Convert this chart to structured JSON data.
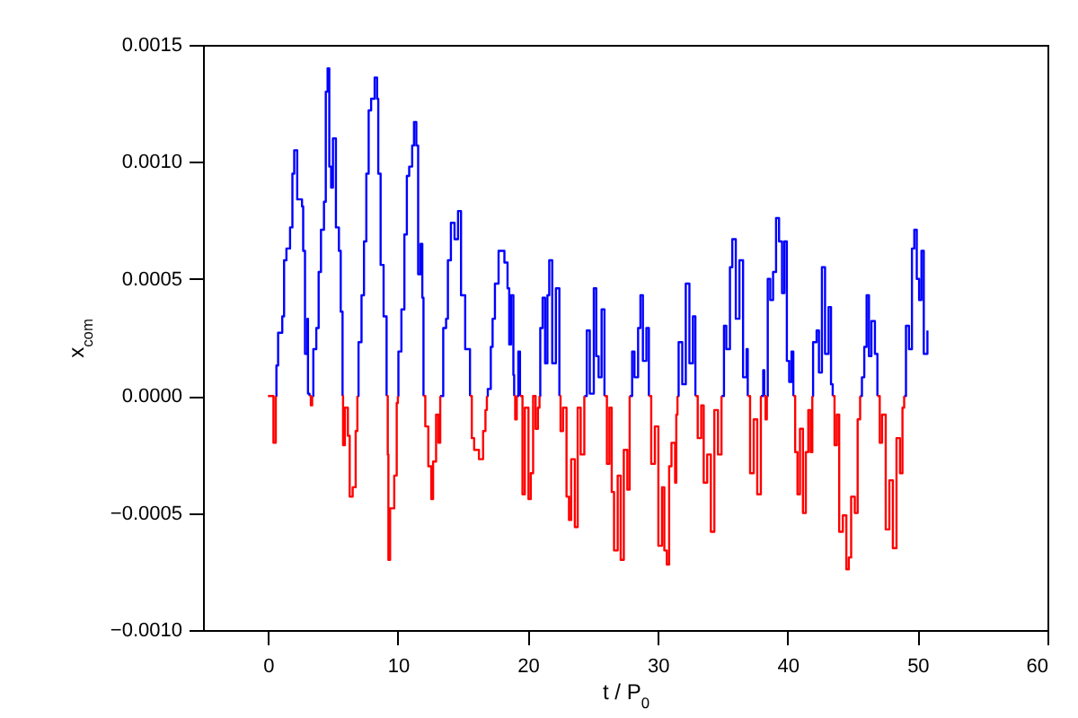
{
  "chart_data": {
    "type": "step",
    "xlabel": "t / P$_{0}$",
    "ylabel": "x$_{com}$",
    "xlim": [
      -5,
      60
    ],
    "xticks": [
      0,
      10,
      20,
      30,
      40,
      50,
      60
    ],
    "ylim": [
      -0.001,
      0.0015
    ],
    "yticks": [
      {
        "value": -0.001,
        "label": "−0.0010"
      },
      {
        "value": -0.0005,
        "label": "−0.0005"
      },
      {
        "value": 0,
        "label": "0.0000"
      },
      {
        "value": 0.0005,
        "label": "0.0005"
      },
      {
        "value": 0.001,
        "label": "0.0010"
      },
      {
        "value": 0.0015,
        "label": "0.0015"
      }
    ],
    "grid": false,
    "series": [
      {
        "color": "#0000ff",
        "x": [
          0.6,
          0.65,
          0.78,
          1.1,
          1.24,
          1.42,
          1.7,
          1.88,
          2.02,
          2.25,
          2.62,
          2.71,
          2.85,
          3.03,
          3.08,
          3.2,
          3.3,
          3.4,
          3.49,
          3.72,
          3.9,
          4.08,
          4.31,
          4.45,
          4.59,
          4.72,
          4.86,
          5.0,
          5.23,
          5.46,
          5.6,
          5.74,
          5.78,
          6.88,
          6.97,
          7.2,
          7.39,
          7.57,
          7.75,
          7.94,
          8.21,
          8.4,
          8.49,
          8.67,
          8.9,
          9.13,
          9.22,
          10.0,
          10.04,
          10.27,
          10.5,
          10.69,
          10.87,
          11.1,
          11.24,
          11.42,
          11.56,
          11.74,
          11.88,
          11.97,
          12.11,
          13.26,
          13.49,
          13.71,
          13.85,
          14.08,
          14.36,
          14.63,
          14.86,
          15.18,
          15.55,
          15.69,
          16.85,
          16.92,
          17.15,
          17.29,
          17.47,
          17.75,
          18.2,
          18.44,
          18.57,
          18.71,
          18.89,
          18.95,
          19.03,
          19.15,
          19.27,
          19.4,
          19.59,
          20.9,
          20.96,
          21.14,
          21.33,
          21.51,
          21.65,
          21.88,
          22.16,
          22.43,
          22.52,
          24.35,
          24.54,
          24.77,
          25.08,
          25.27,
          25.45,
          25.68,
          25.9,
          26.09,
          27.84,
          28.03,
          28.21,
          28.49,
          28.67,
          28.86,
          29.13,
          29.32,
          29.5,
          31.52,
          31.61,
          31.89,
          32.16,
          32.44,
          32.71,
          32.9,
          33.08,
          34.91,
          35.1,
          35.28,
          35.56,
          35.74,
          36.01,
          36.29,
          36.57,
          36.84,
          36.93,
          37.11,
          37.94,
          38.12,
          38.2,
          38.3,
          38.4,
          38.47,
          38.66,
          38.88,
          39.11,
          39.34,
          39.57,
          39.75,
          39.94,
          40.12,
          40.3,
          40.44,
          40.58,
          41.9,
          41.96,
          42.23,
          42.41,
          42.64,
          42.88,
          43.15,
          43.34,
          43.47,
          43.61,
          45.58,
          45.72,
          45.9,
          46.08,
          46.26,
          46.45,
          46.72,
          46.91,
          47.09,
          48.97,
          49.11,
          49.34,
          49.57,
          49.75,
          49.94,
          50.12,
          50.3,
          50.48,
          50.76
        ],
        "values": [
          0,
          0.00013,
          0.00027,
          0.00034,
          0.00058,
          0.00063,
          0.00072,
          0.00095,
          0.00105,
          0.00084,
          0.00081,
          0.00062,
          0.00018,
          0.00033,
          1e-05,
          0,
          null,
          0,
          0.0002,
          0.00029,
          0.00053,
          0.00071,
          0.00083,
          0.0013,
          0.0014,
          0.00098,
          0.00089,
          0.0011,
          0.00072,
          0.00062,
          0.00036,
          0,
          null,
          0,
          0.00023,
          0.00043,
          0.00066,
          0.00095,
          0.00122,
          0.00127,
          0.00136,
          0.00127,
          0.00095,
          0.00056,
          0.00034,
          0,
          null,
          0,
          0.00019,
          0.00037,
          0.00069,
          0.00094,
          0.00098,
          0.00107,
          0.00117,
          0.00107,
          0.00052,
          0.00065,
          0.00042,
          0,
          null,
          0,
          0.00029,
          0.00033,
          0.00058,
          0.00074,
          0.00067,
          0.00079,
          0.00043,
          0.0002,
          0,
          null,
          0,
          3e-05,
          0.00021,
          0.00033,
          0.00048,
          0.00062,
          0.00057,
          0.00046,
          0.00022,
          0.00043,
          9e-05,
          0,
          null,
          0,
          0.00019,
          0,
          null,
          0,
          0.00029,
          0.00042,
          0.00014,
          0.00043,
          0.00058,
          0.00014,
          0.00046,
          0,
          null,
          0,
          0.00028,
          1e-05,
          0.00046,
          0.00017,
          8e-05,
          0.00037,
          0,
          null,
          0,
          0.00019,
          8e-05,
          0.00029,
          0.00043,
          0.00015,
          0.00029,
          0,
          null,
          0,
          0.00023,
          5e-05,
          0.00048,
          0.00014,
          0.00034,
          0,
          null,
          0,
          0.0003,
          0.0002,
          0.00055,
          0.00067,
          0.00033,
          0.00058,
          8e-05,
          0.0002,
          0,
          null,
          0,
          0.00011,
          0,
          null,
          0,
          0.0005,
          0.00041,
          0.00053,
          0.00076,
          0.00066,
          0.00044,
          0.00066,
          0.00015,
          6e-05,
          0.00019,
          0,
          null,
          0,
          0.00023,
          0.00028,
          0.0001,
          0.00055,
          0.00018,
          0.00038,
          5e-05,
          0,
          null,
          0,
          8e-05,
          0.00021,
          0.00043,
          0.00017,
          0.00032,
          0.00018,
          0,
          null,
          0,
          0.0003,
          0.0002,
          0.00063,
          0.00071,
          0.0005,
          0.00041,
          0.00062,
          0.00018,
          0.00028
        ]
      },
      {
        "color": "#ff0000",
        "x": [
          0,
          0.42,
          0.6,
          0.65,
          3.2,
          3.3,
          3.4,
          3.49,
          5.74,
          5.78,
          5.92,
          6.15,
          6.29,
          6.52,
          6.75,
          6.88,
          6.97,
          9.13,
          9.22,
          9.27,
          9.4,
          9.72,
          9.91,
          10.0,
          10.04,
          11.97,
          12.11,
          12.34,
          12.57,
          12.71,
          12.94,
          13.12,
          13.26,
          13.49,
          15.55,
          15.69,
          15.87,
          16.24,
          16.56,
          16.74,
          16.85,
          16.92,
          18.95,
          19.03,
          19.15,
          19.27,
          19.4,
          19.59,
          19.77,
          20.05,
          20.23,
          20.41,
          20.6,
          20.78,
          20.9,
          20.96,
          22.43,
          22.52,
          22.71,
          22.98,
          23.17,
          23.34,
          23.62,
          23.84,
          24.07,
          24.35,
          24.54,
          25.9,
          26.09,
          26.28,
          26.46,
          26.64,
          26.92,
          27.15,
          27.39,
          27.66,
          27.84,
          28.03,
          29.32,
          29.5,
          29.78,
          30.05,
          30.33,
          30.51,
          30.7,
          30.88,
          31.06,
          31.34,
          31.43,
          31.52,
          31.61,
          32.9,
          33.08,
          33.35,
          33.54,
          33.81,
          34.09,
          34.36,
          34.64,
          34.91,
          35.1,
          36.93,
          37.11,
          37.39,
          37.66,
          37.94,
          38.12,
          38.2,
          38.3,
          38.4,
          38.47,
          40.44,
          40.58,
          40.76,
          40.95,
          41.18,
          41.4,
          41.59,
          41.77,
          41.9,
          41.96,
          43.47,
          43.61,
          43.79,
          43.97,
          44.25,
          44.52,
          44.71,
          44.89,
          45.17,
          45.39,
          45.58,
          45.72,
          46.91,
          47.09,
          47.27,
          47.55,
          47.83,
          48.1,
          48.38,
          48.65,
          48.84,
          48.97
        ],
        "values": [
          0,
          -0.0002,
          0,
          null,
          0,
          -4e-05,
          0,
          null,
          0,
          -0.00021,
          -5e-05,
          -0.00017,
          -0.00043,
          -0.00039,
          -0.00015,
          0,
          null,
          0,
          -0.00025,
          -0.0007,
          -0.00048,
          -0.00034,
          -3e-05,
          0,
          null,
          0,
          -0.00013,
          -0.0003,
          -0.00044,
          -0.00028,
          -8e-05,
          -0.0002,
          0,
          null,
          0,
          -0.00018,
          -0.00023,
          -0.00027,
          -0.00015,
          -6e-05,
          0,
          null,
          0,
          -0.0001,
          0,
          null,
          0,
          -0.00042,
          -5e-05,
          -0.00044,
          -0.00033,
          0,
          -0.00014,
          -5e-05,
          0,
          null,
          0,
          -0.00015,
          -5e-05,
          -0.00043,
          -0.00053,
          -0.00027,
          -0.00056,
          -5e-05,
          -0.00025,
          0,
          null,
          0,
          -0.00029,
          -5e-05,
          -0.00041,
          -0.00066,
          -0.00034,
          -0.0007,
          -0.00023,
          -0.0004,
          0,
          null,
          0,
          -0.00029,
          -0.00013,
          -0.00064,
          -0.00039,
          -0.00066,
          -0.00072,
          -0.0003,
          -0.0002,
          -0.00037,
          -8e-05,
          0,
          null,
          0,
          -0.00018,
          -4e-05,
          -0.00037,
          -0.00025,
          -0.00058,
          -6e-05,
          -0.00025,
          0,
          null,
          0,
          -0.00033,
          -0.0001,
          -0.00042,
          0,
          null,
          0,
          -0.0001,
          0,
          null,
          0,
          -0.00024,
          -0.00042,
          -0.00014,
          -0.0005,
          -0.00024,
          -6e-05,
          -0.00024,
          0,
          null,
          0,
          -0.00021,
          -8e-05,
          -0.00058,
          -0.00051,
          -0.00074,
          -0.00069,
          -0.00043,
          -0.0005,
          -0.0001,
          0,
          null,
          0,
          -0.0002,
          -8e-05,
          -0.00057,
          -0.00036,
          -0.00065,
          -0.00018,
          -0.00033,
          -5e-05,
          0
        ]
      }
    ]
  }
}
